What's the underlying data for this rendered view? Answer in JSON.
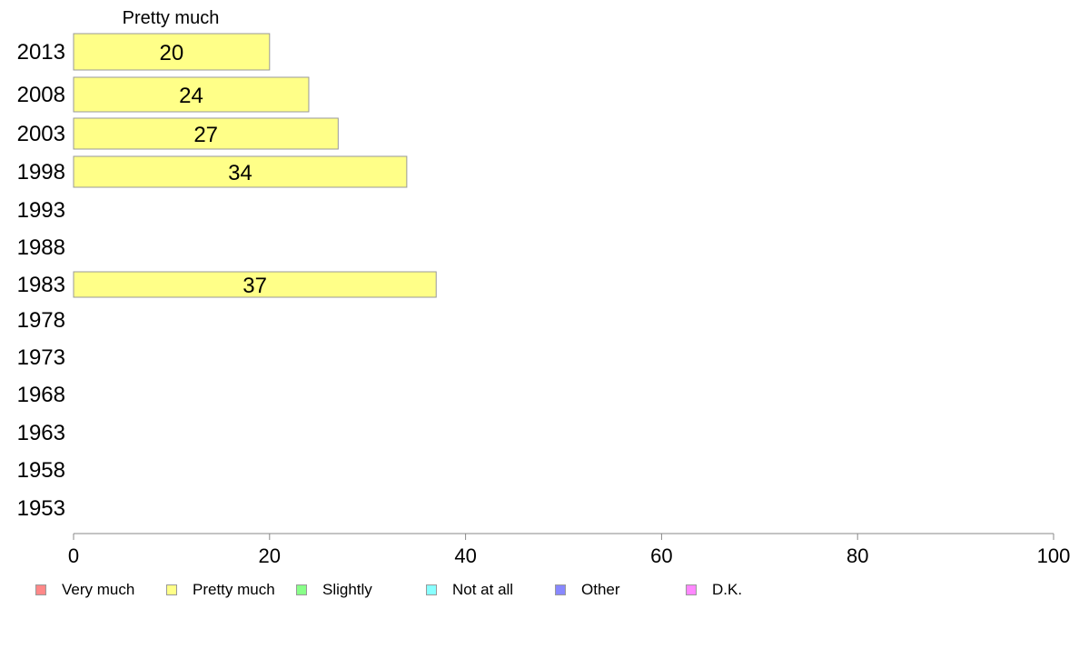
{
  "chart_data": {
    "type": "bar",
    "orientation": "horizontal",
    "panel_title": "Pretty much",
    "categories": [
      "2013",
      "2008",
      "2003",
      "1998",
      "1993",
      "1988",
      "1983",
      "1978",
      "1973",
      "1968",
      "1963",
      "1958",
      "1953"
    ],
    "series": [
      {
        "name": "Pretty much",
        "color": "#ffff88",
        "values": [
          20,
          24,
          27,
          34,
          null,
          null,
          37,
          null,
          null,
          null,
          null,
          null,
          null
        ]
      }
    ],
    "data_labels": [
      "20",
      "24",
      "27",
      "34",
      "",
      "",
      "37",
      "",
      "",
      "",
      "",
      "",
      ""
    ],
    "xlim": [
      0,
      100
    ],
    "xticks": [
      0,
      20,
      40,
      60,
      80,
      100
    ],
    "xtick_labels": [
      "0",
      "20",
      "40",
      "60",
      "80",
      "100"
    ],
    "grid": false,
    "legend_position": "bottom",
    "legend": [
      {
        "label": "Very much",
        "color": "#ff8888"
      },
      {
        "label": "Pretty much",
        "color": "#ffff88"
      },
      {
        "label": "Slightly",
        "color": "#88ff88"
      },
      {
        "label": "Not at all",
        "color": "#88ffff"
      },
      {
        "label": "Other",
        "color": "#8888ff"
      },
      {
        "label": "D.K.",
        "color": "#ff88ff"
      }
    ]
  }
}
